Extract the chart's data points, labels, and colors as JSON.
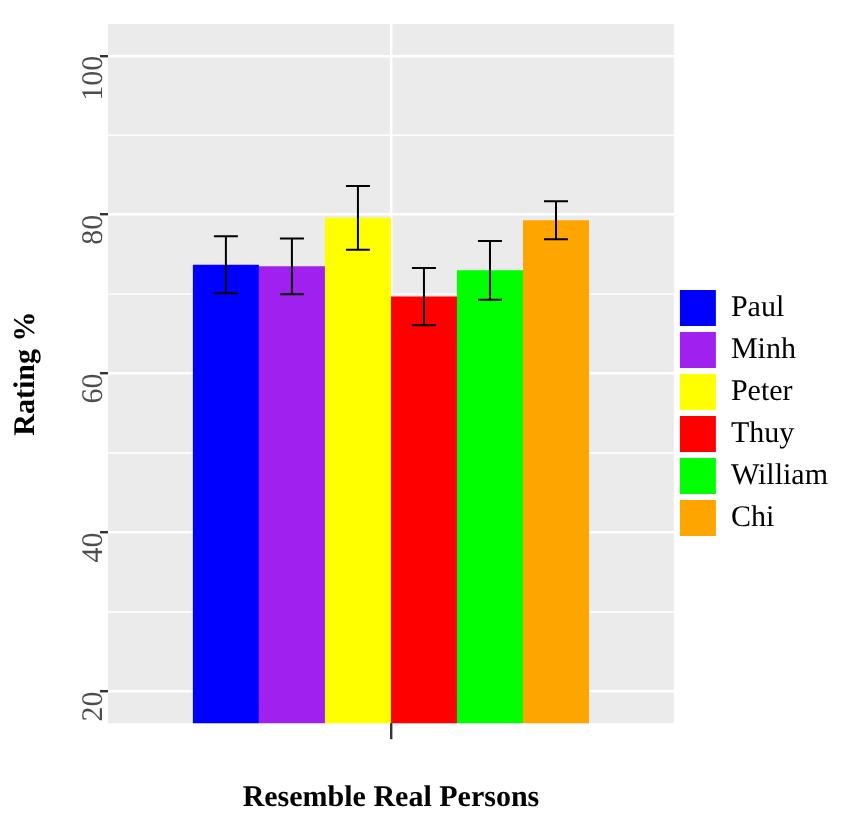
{
  "chart_data": {
    "type": "bar",
    "xlabel": "Resemble Real Persons",
    "ylabel": "Rating %",
    "categories": [
      null
    ],
    "series": [
      {
        "name": "Paul",
        "color": "#0000ff",
        "values": [
          73.7
        ],
        "errors": [
          3.6
        ]
      },
      {
        "name": "Minh",
        "color": "#a020f0",
        "values": [
          73.5
        ],
        "errors": [
          3.5
        ]
      },
      {
        "name": "Peter",
        "color": "#ffff00",
        "values": [
          79.6
        ],
        "errors": [
          4
        ]
      },
      {
        "name": "Thuy",
        "color": "#ff0000",
        "values": [
          69.7
        ],
        "errors": [
          3.6
        ]
      },
      {
        "name": "William",
        "color": "#00ff00",
        "values": [
          73
        ],
        "errors": [
          3.7
        ]
      },
      {
        "name": "Chi",
        "color": "#ffa500",
        "values": [
          79.3
        ],
        "errors": [
          2.4
        ]
      }
    ],
    "ylim": [
      16,
      104
    ],
    "yticks": [
      20,
      40,
      60,
      80,
      100
    ],
    "grid": true,
    "legend": "right"
  }
}
